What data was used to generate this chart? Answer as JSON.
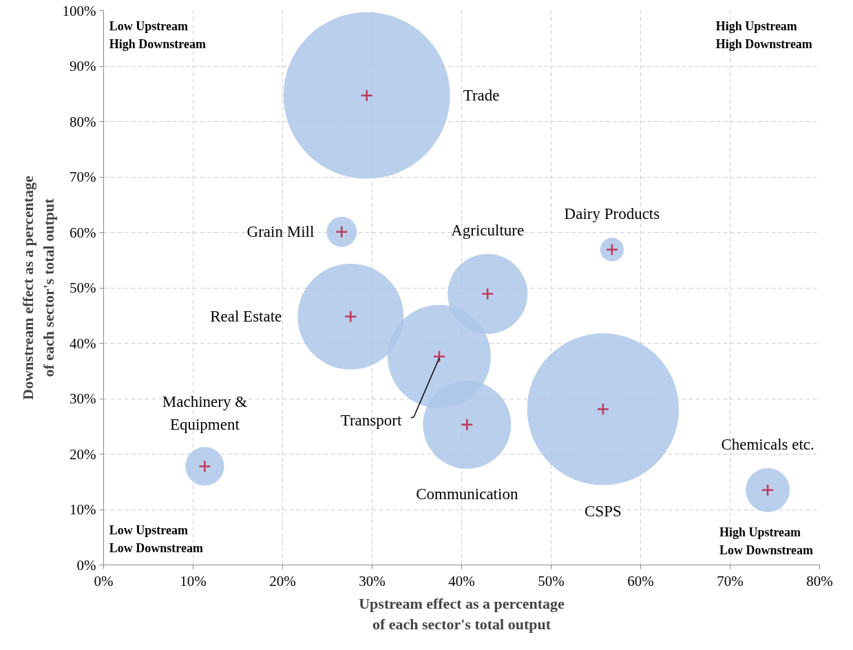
{
  "chart_data": {
    "type": "bubble",
    "xlabel": "Upstream effect as a percentage\nof each sector's total output",
    "ylabel": "Downstream effect as a percentage\nof each sector's total output",
    "x": [
      29.4,
      26.6,
      27.6,
      42.9,
      56.8,
      37.5,
      40.6,
      55.8,
      11.3,
      74.2
    ],
    "values": [
      84.7,
      60.1,
      44.8,
      48.9,
      56.9,
      37.6,
      25.3,
      28.1,
      17.8,
      13.5
    ],
    "sizes": [
      1,
      0.033,
      0.405,
      0.23,
      0.02,
      0.384,
      0.28,
      0.83,
      0.054,
      0.07
    ],
    "color": "#adc7e9",
    "xlim": [
      0,
      80
    ],
    "ylim": [
      0,
      100
    ],
    "xticks": [
      {
        "value": 0,
        "label": "0%"
      },
      {
        "value": 10,
        "label": "10%"
      },
      {
        "value": 20,
        "label": "20%"
      },
      {
        "value": 30,
        "label": "30%"
      },
      {
        "value": 40,
        "label": "40%"
      },
      {
        "value": 50,
        "label": "50%"
      },
      {
        "value": 60,
        "label": "60%"
      },
      {
        "value": 70,
        "label": "70%"
      },
      {
        "value": 80,
        "label": "80%"
      }
    ],
    "yticks": [
      {
        "value": 0,
        "label": "0%"
      },
      {
        "value": 10,
        "label": "10%"
      },
      {
        "value": 20,
        "label": "20%"
      },
      {
        "value": 30,
        "label": "30%"
      },
      {
        "value": 40,
        "label": "40%"
      },
      {
        "value": 50,
        "label": "50%"
      },
      {
        "value": 60,
        "label": "60%"
      },
      {
        "value": 70,
        "label": "70%"
      },
      {
        "value": 80,
        "label": "80%"
      },
      {
        "value": 90,
        "label": "90%"
      },
      {
        "value": 100,
        "label": "100%"
      }
    ],
    "grid": true,
    "annotations": [
      "Low Upstream\nHigh Downstream",
      "High Upstream\nHigh Downstream",
      "Low Upstream\nLow Downstream",
      "High Upstream\nLow Downstream",
      "Trade",
      "Grain Mill",
      "Real Estate",
      "Agriculture",
      "Dairy Products",
      {
        "text": "Transport",
        "x": 37.5,
        "y": 37.6
      },
      "Communication",
      "CSPS",
      "Machinery &\nEquipment",
      "Chemicals etc."
    ]
  }
}
